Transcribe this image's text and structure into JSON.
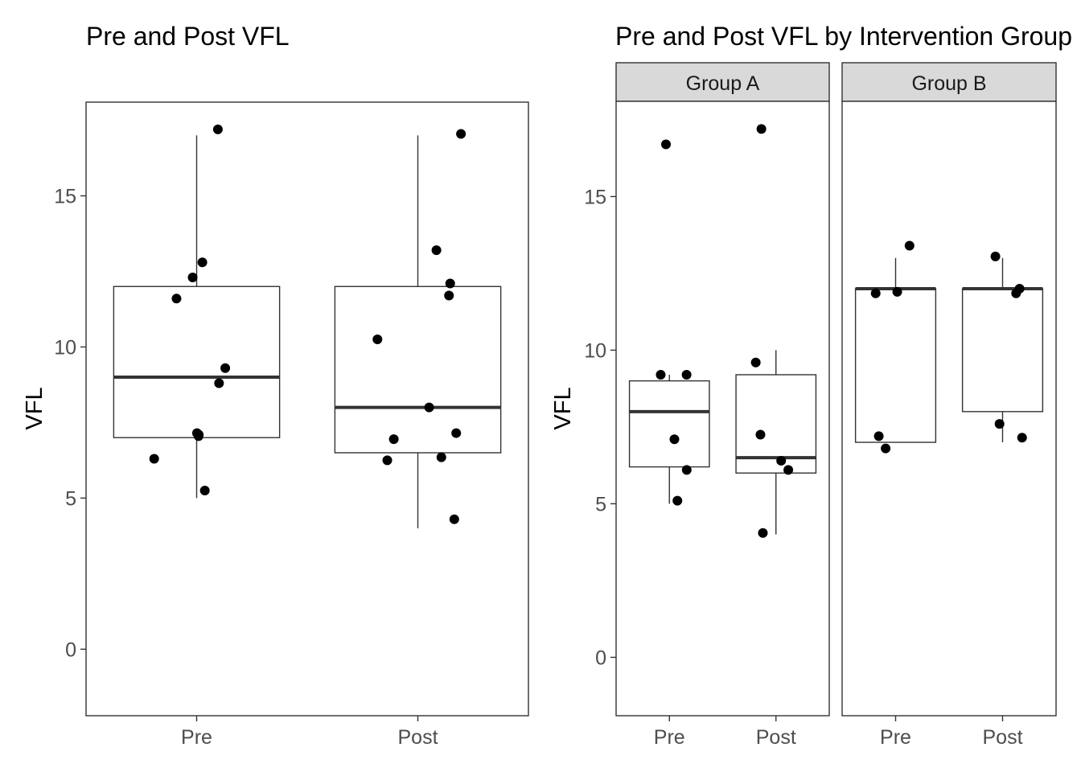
{
  "chart_data": [
    {
      "type": "boxplot",
      "title": "Pre and Post VFL",
      "xlabel": "",
      "ylabel": "VFL",
      "ylim": [
        -2.2,
        18.1
      ],
      "yticks": [
        0,
        5,
        10,
        15
      ],
      "grid": false,
      "categories": [
        "Pre",
        "Post"
      ],
      "boxes": [
        {
          "label": "Pre",
          "min": 5.0,
          "q1": 7.0,
          "median": 9.0,
          "q3": 12.0,
          "max": 17.0
        },
        {
          "label": "Post",
          "min": 4.0,
          "q1": 6.5,
          "median": 8.0,
          "q3": 12.0,
          "max": 17.0
        }
      ],
      "points": [
        {
          "category": "Pre",
          "values": [
            17.2,
            12.8,
            12.3,
            11.6,
            9.3,
            8.8,
            7.15,
            7.1,
            7.05,
            6.3,
            5.25
          ]
        },
        {
          "category": "Post",
          "values": [
            17.05,
            13.2,
            12.1,
            11.7,
            10.25,
            8.0,
            7.15,
            6.95,
            6.35,
            6.25,
            4.3
          ]
        }
      ]
    },
    {
      "type": "boxplot",
      "title": "Pre and Post VFL by Intervention Group",
      "xlabel": "",
      "ylabel": "VFL",
      "ylim": [
        -1.9,
        18.1
      ],
      "yticks": [
        0,
        5,
        10,
        15
      ],
      "grid": false,
      "facets": [
        {
          "label": "Group A",
          "categories": [
            "Pre",
            "Post"
          ],
          "boxes": [
            {
              "label": "Pre",
              "min": 5.0,
              "q1": 6.2,
              "median": 8.0,
              "q3": 9.0,
              "max": 9.2
            },
            {
              "label": "Post",
              "min": 4.0,
              "q1": 6.0,
              "median": 6.5,
              "q3": 9.2,
              "max": 10.0
            }
          ],
          "points": [
            {
              "category": "Pre",
              "values": [
                16.7,
                9.2,
                9.2,
                7.1,
                6.1,
                5.1
              ]
            },
            {
              "category": "Post",
              "values": [
                17.2,
                9.6,
                7.25,
                6.4,
                6.1,
                4.05
              ]
            }
          ]
        },
        {
          "label": "Group B",
          "categories": [
            "Pre",
            "Post"
          ],
          "boxes": [
            {
              "label": "Pre",
              "min": 7.0,
              "q1": 7.0,
              "median": 12.0,
              "q3": 12.0,
              "max": 13.0
            },
            {
              "label": "Post",
              "min": 7.0,
              "q1": 8.0,
              "median": 12.0,
              "q3": 12.0,
              "max": 13.0
            }
          ],
          "points": [
            {
              "category": "Pre",
              "values": [
                13.4,
                11.9,
                11.85,
                7.2,
                6.8
              ]
            },
            {
              "category": "Post",
              "values": [
                13.05,
                12.0,
                11.85,
                7.6,
                7.15
              ]
            }
          ]
        }
      ]
    }
  ]
}
